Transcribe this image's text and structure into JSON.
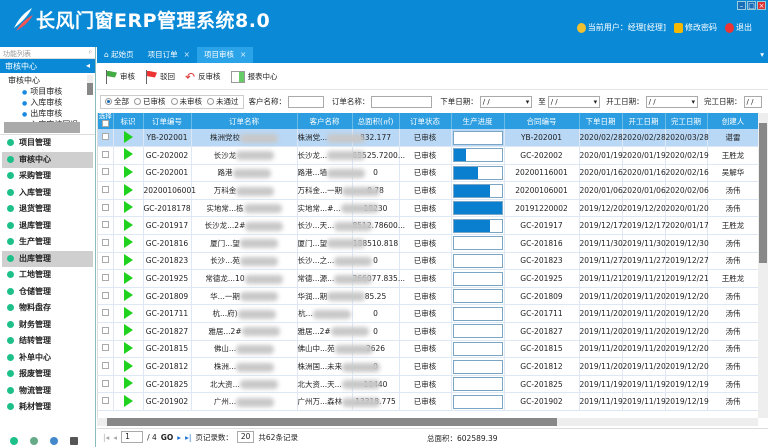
{
  "app": {
    "title": "长风门窗ERP管理系统8.0",
    "brand_color": "#0a8ad6"
  },
  "user": {
    "current": "当前用户：经理[经理]",
    "change_password": "修改密码",
    "logout": "退出"
  },
  "sidebar": {
    "header": "功能列表",
    "panel_title": "审核中心",
    "tree": {
      "root": "审核中心",
      "leaves": [
        "项目审核",
        "入库审核",
        "出库审核",
        "入库审核回退"
      ]
    },
    "items": [
      {
        "label": "项目管理"
      },
      {
        "label": "审核中心",
        "selected": true
      },
      {
        "label": "采购管理"
      },
      {
        "label": "入库管理"
      },
      {
        "label": "退货管理"
      },
      {
        "label": "退库管理"
      },
      {
        "label": "生产管理"
      },
      {
        "label": "出库管理",
        "selected": true
      },
      {
        "label": "工地管理"
      },
      {
        "label": "仓储管理"
      },
      {
        "label": "物料盘存"
      },
      {
        "label": "财务管理"
      },
      {
        "label": "结转管理"
      },
      {
        "label": "补单中心"
      },
      {
        "label": "报废管理"
      },
      {
        "label": "物流管理"
      },
      {
        "label": "耗材管理"
      }
    ]
  },
  "tabs": [
    {
      "label": "起始页"
    },
    {
      "label": "项目订单"
    },
    {
      "label": "项目审核",
      "active": true
    }
  ],
  "toolbar": {
    "approve": "审核",
    "reject": "驳回",
    "unapprove": "反审核",
    "report": "报表中心"
  },
  "filters": {
    "radios": [
      "全部",
      "已审核",
      "未审核",
      "未通过"
    ],
    "selected": "全部",
    "customer_label": "客户名称：",
    "order_label": "订单名称：",
    "order_date_label": "下单日期：",
    "to_label": "至",
    "start_date_label": "开工日期：",
    "finish_date_label": "完工日期：",
    "date_placeholder": "/  /"
  },
  "table": {
    "columns": [
      "选择",
      "标识",
      "订单编号",
      "订单名称",
      "客户名称",
      "总面积(㎡)",
      "订单状态",
      "生产进度",
      "合同编号",
      "下单日期",
      "开工日期",
      "完工日期",
      "创建人"
    ],
    "rows": [
      {
        "no": "YB-202001",
        "name": "株洲党校",
        "customer": "株洲党...",
        "area": "832.177",
        "status": "已审核",
        "progress": 0,
        "contract": "YB-202001",
        "order_date": "2020/02/28",
        "start": "2020/02/28",
        "finish": "2020/03/28",
        "creator": "谌雷"
      },
      {
        "no": "GC-202002",
        "name": "长沙龙",
        "customer": "长沙龙...",
        "area": "65525.7200...",
        "status": "已审核",
        "progress": 25,
        "contract": "GC-202002",
        "order_date": "2020/01/19",
        "start": "2020/01/19",
        "finish": "2020/02/19",
        "creator": "王胜龙"
      },
      {
        "no": "GC-202001",
        "name": "路港",
        "customer": "路港...墙",
        "area": "0",
        "status": "已审核",
        "progress": 50,
        "contract": "20200116001",
        "order_date": "2020/01/16",
        "start": "2020/01/16",
        "finish": "2020/02/16",
        "creator": "吴解华"
      },
      {
        "no": "20200106001",
        "name": "万科金",
        "customer": "万科金...一期",
        "area": "0.78",
        "status": "已审核",
        "progress": 75,
        "contract": "20200106001",
        "order_date": "2020/01/06",
        "start": "2020/01/06",
        "finish": "2020/02/06",
        "creator": "汤伟"
      },
      {
        "no": "GC-2018178",
        "name": "实地常...栋",
        "customer": "实地常...#...",
        "area": "18230",
        "status": "已审核",
        "progress": 100,
        "contract": "20191220002",
        "order_date": "2019/12/20",
        "start": "2019/12/20",
        "finish": "2020/01/20",
        "creator": "汤伟"
      },
      {
        "no": "GC-201917",
        "name": "长沙龙...2#",
        "customer": "长沙...天...",
        "area": "8512.78600...",
        "status": "已审核",
        "progress": 75,
        "contract": "GC-201917",
        "order_date": "2019/12/17",
        "start": "2019/12/17",
        "finish": "2020/01/17",
        "creator": "王胜龙"
      },
      {
        "no": "GC-201816",
        "name": "厦门...望",
        "customer": "厦门...望",
        "area": "188510.818",
        "status": "已审核",
        "progress": 0,
        "contract": "GC-201816",
        "order_date": "2019/11/30",
        "start": "2019/11/30",
        "finish": "2019/12/30",
        "creator": "汤伟"
      },
      {
        "no": "GC-201823",
        "name": "长沙...苑",
        "customer": "长沙...之...",
        "area": "0",
        "status": "已审核",
        "progress": 0,
        "contract": "GC-201823",
        "order_date": "2019/11/27",
        "start": "2019/11/27",
        "finish": "2019/12/27",
        "creator": "汤伟"
      },
      {
        "no": "GC-201925",
        "name": "常德龙...10",
        "customer": "常德...源...",
        "area": "266077.835...",
        "status": "已审核",
        "progress": 0,
        "contract": "GC-201925",
        "order_date": "2019/11/21",
        "start": "2019/11/21",
        "finish": "2019/12/21",
        "creator": "王胜龙"
      },
      {
        "no": "GC-201809",
        "name": "华...一期",
        "customer": "华润...期",
        "area": "85.25",
        "status": "已审核",
        "progress": 0,
        "contract": "GC-201809",
        "order_date": "2019/11/20",
        "start": "2019/11/20",
        "finish": "2019/12/20",
        "creator": "汤伟"
      },
      {
        "no": "GC-201711",
        "name": "杭...府)",
        "customer": "杭...",
        "area": "0",
        "status": "已审核",
        "progress": 0,
        "contract": "GC-201711",
        "order_date": "2019/11/20",
        "start": "2019/11/20",
        "finish": "2019/12/20",
        "creator": "汤伟"
      },
      {
        "no": "GC-201827",
        "name": "雅居...2#",
        "customer": "雅居...2#",
        "area": "0",
        "status": "已审核",
        "progress": 0,
        "contract": "GC-201827",
        "order_date": "2019/11/20",
        "start": "2019/11/20",
        "finish": "2019/12/20",
        "creator": "汤伟"
      },
      {
        "no": "GC-201815",
        "name": "佛山...",
        "customer": "佛山中...苑",
        "area": "2626",
        "status": "已审核",
        "progress": 0,
        "contract": "GC-201815",
        "order_date": "2019/11/20",
        "start": "2019/11/20",
        "finish": "2019/12/20",
        "creator": "汤伟"
      },
      {
        "no": "GC-201812",
        "name": "株洲...",
        "customer": "株洲国...未来",
        "area": "0",
        "status": "已审核",
        "progress": 0,
        "contract": "GC-201812",
        "order_date": "2019/11/20",
        "start": "2019/11/20",
        "finish": "2019/12/20",
        "creator": "汤伟"
      },
      {
        "no": "GC-201825",
        "name": "北大资...",
        "customer": "北大资...天...",
        "area": "10440",
        "status": "已审核",
        "progress": 0,
        "contract": "GC-201825",
        "order_date": "2019/11/19",
        "start": "2019/11/19",
        "finish": "2019/12/19",
        "creator": "汤伟"
      },
      {
        "no": "GC-201902",
        "name": "广州...",
        "customer": "广州万...森林",
        "area": "13318.775",
        "status": "已审核",
        "progress": 0,
        "contract": "GC-201902",
        "order_date": "2019/11/19",
        "start": "2019/11/19",
        "finish": "2019/12/19",
        "creator": "汤伟"
      }
    ]
  },
  "pager": {
    "page": "1",
    "total_pages": "/ 4",
    "go": "GO",
    "page_size_label": "页记录数：",
    "page_size": "20",
    "total_records": "共62条记录"
  },
  "summary": {
    "total_area": "总面积：602589.39"
  }
}
